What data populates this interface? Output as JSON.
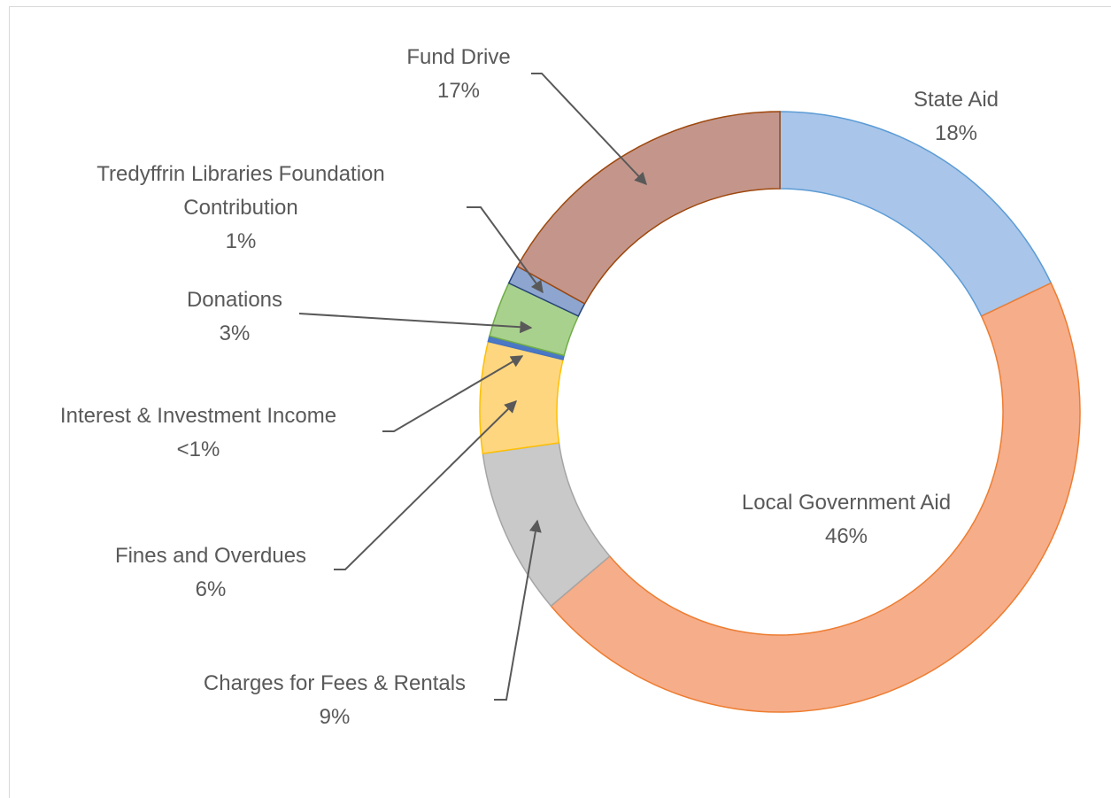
{
  "chart_data": {
    "type": "donut",
    "categories": [
      "State Aid",
      "Local Government Aid",
      "Charges for Fees & Rentals",
      "Fines and Overdues",
      "Interest & Investment Income",
      "Donations",
      "Tredyffrin Libraries Foundation Contribution",
      "Fund Drive"
    ],
    "values": [
      18,
      46,
      9,
      6,
      0.3,
      3,
      1,
      17
    ],
    "value_labels": [
      "18%",
      "46%",
      "9%",
      "6%",
      "<1%",
      "3%",
      "1%",
      "17%"
    ],
    "colors": [
      "#a9c5e9",
      "#f6ad8a",
      "#c9c9c9",
      "#fed680",
      "#4a78c4",
      "#a9d18e",
      "#8ea6cf",
      "#c4968b"
    ],
    "edge_colors": [
      "#5b9bd5",
      "#ed7d31",
      "#a5a5a5",
      "#ffc000",
      "#4472c4",
      "#70ad47",
      "#264478",
      "#9e480e"
    ]
  }
}
